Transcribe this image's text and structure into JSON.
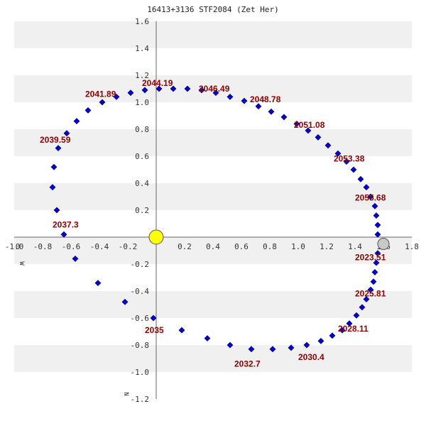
{
  "chart_data": {
    "type": "scatter",
    "title": "16413+3136 STF2084 (Zet Her)",
    "xlim": [
      -1.0,
      1.8
    ],
    "ylim": [
      -1.2,
      1.6
    ],
    "y_inverted": true,
    "x_ticks": [
      "-1.0",
      "-0.8",
      "-0.6",
      "-0.4",
      "-0.2",
      "0.2",
      "0.4",
      "0.6",
      "0.8",
      "1.0",
      "1.2",
      "1.4",
      "1.6",
      "1.8"
    ],
    "x_tick_values": [
      -1.0,
      -0.8,
      -0.6,
      -0.4,
      -0.2,
      0.2,
      0.4,
      0.6,
      0.8,
      1.0,
      1.2,
      1.4,
      1.6,
      1.8
    ],
    "y_ticks": [
      "1.6",
      "1.4",
      "1.2",
      "1.0",
      "0.8",
      "0.6",
      "0.4",
      "0.2",
      "-0.2",
      "-0.4",
      "-0.6",
      "-0.8",
      "-1.0",
      "-1.2"
    ],
    "y_tick_values": [
      1.6,
      1.4,
      1.2,
      1.0,
      0.8,
      0.6,
      0.4,
      0.2,
      -0.2,
      -0.4,
      -0.6,
      -0.8,
      -1.0,
      -1.2
    ],
    "x_zero_label": "0",
    "west_label": "W",
    "north_label": "N",
    "grid": "alternating horizontal bands",
    "colors": {
      "band": "#f0f0f0",
      "point": "#0000cc",
      "epoch_text": "#8b0000",
      "primary_star": "#ffff00",
      "current_position": "#c8c8c8",
      "axis": "#666666"
    },
    "primary": {
      "x": 0.0,
      "y": 0.0
    },
    "current_position": {
      "x": 1.6,
      "y": -0.05
    },
    "orbit_points": [
      {
        "x": 1.56,
        "y": 0.02
      },
      {
        "x": 1.56,
        "y": -0.12
      },
      {
        "x": 1.55,
        "y": -0.19
      },
      {
        "x": 1.54,
        "y": -0.26
      },
      {
        "x": 1.53,
        "y": -0.33
      },
      {
        "x": 1.51,
        "y": -0.39
      },
      {
        "x": 1.48,
        "y": -0.46
      },
      {
        "x": 1.45,
        "y": -0.52
      },
      {
        "x": 1.41,
        "y": -0.58
      },
      {
        "x": 1.36,
        "y": -0.64
      },
      {
        "x": 1.31,
        "y": -0.69
      },
      {
        "x": 1.24,
        "y": -0.73
      },
      {
        "x": 1.16,
        "y": -0.77
      },
      {
        "x": 1.06,
        "y": -0.8
      },
      {
        "x": 0.95,
        "y": -0.82
      },
      {
        "x": 0.82,
        "y": -0.83
      },
      {
        "x": 0.67,
        "y": -0.83
      },
      {
        "x": 0.52,
        "y": -0.8
      },
      {
        "x": 0.36,
        "y": -0.75
      },
      {
        "x": 0.18,
        "y": -0.69
      },
      {
        "x": -0.02,
        "y": -0.6
      },
      {
        "x": -0.22,
        "y": -0.48
      },
      {
        "x": -0.41,
        "y": -0.34
      },
      {
        "x": -0.57,
        "y": -0.16
      },
      {
        "x": -0.65,
        "y": 0.02
      },
      {
        "x": -0.7,
        "y": 0.2
      },
      {
        "x": -0.73,
        "y": 0.37
      },
      {
        "x": -0.72,
        "y": 0.52
      },
      {
        "x": -0.69,
        "y": 0.66
      },
      {
        "x": -0.63,
        "y": 0.77
      },
      {
        "x": -0.56,
        "y": 0.86
      },
      {
        "x": -0.48,
        "y": 0.94
      },
      {
        "x": -0.38,
        "y": 1.0
      },
      {
        "x": -0.28,
        "y": 1.04
      },
      {
        "x": -0.18,
        "y": 1.07
      },
      {
        "x": -0.08,
        "y": 1.09
      },
      {
        "x": 0.02,
        "y": 1.1
      },
      {
        "x": 0.12,
        "y": 1.1
      },
      {
        "x": 0.22,
        "y": 1.1
      },
      {
        "x": 0.32,
        "y": 1.09
      },
      {
        "x": 0.42,
        "y": 1.07
      },
      {
        "x": 0.52,
        "y": 1.04
      },
      {
        "x": 0.62,
        "y": 1.01
      },
      {
        "x": 0.72,
        "y": 0.97
      },
      {
        "x": 0.81,
        "y": 0.93
      },
      {
        "x": 0.9,
        "y": 0.89
      },
      {
        "x": 0.99,
        "y": 0.84
      },
      {
        "x": 1.07,
        "y": 0.79
      },
      {
        "x": 1.14,
        "y": 0.74
      },
      {
        "x": 1.21,
        "y": 0.68
      },
      {
        "x": 1.28,
        "y": 0.62
      },
      {
        "x": 1.34,
        "y": 0.56
      },
      {
        "x": 1.39,
        "y": 0.5
      },
      {
        "x": 1.44,
        "y": 0.43
      },
      {
        "x": 1.48,
        "y": 0.37
      },
      {
        "x": 1.51,
        "y": 0.3
      },
      {
        "x": 1.54,
        "y": 0.23
      },
      {
        "x": 1.55,
        "y": 0.16
      },
      {
        "x": 1.56,
        "y": 0.09
      }
    ],
    "epoch_labels": [
      {
        "text": "2023.51",
        "x": 1.4,
        "y": -0.17
      },
      {
        "text": "2025.81",
        "x": 1.4,
        "y": -0.44
      },
      {
        "text": "2028.11",
        "x": 1.28,
        "y": -0.7
      },
      {
        "text": "2030.4",
        "x": 1.0,
        "y": -0.91
      },
      {
        "text": "2032.7",
        "x": 0.55,
        "y": -0.96
      },
      {
        "text": "2035",
        "x": -0.08,
        "y": -0.71
      },
      {
        "text": "2037.3",
        "x": -0.73,
        "y": 0.07
      },
      {
        "text": "2039.59",
        "x": -0.82,
        "y": 0.7
      },
      {
        "text": "2041.89",
        "x": -0.5,
        "y": 1.04
      },
      {
        "text": "2044.19",
        "x": -0.1,
        "y": 1.12
      },
      {
        "text": "2046.49",
        "x": 0.3,
        "y": 1.08
      },
      {
        "text": "2048.78",
        "x": 0.66,
        "y": 1.0
      },
      {
        "text": "2051.08",
        "x": 0.97,
        "y": 0.81
      },
      {
        "text": "2053.38",
        "x": 1.25,
        "y": 0.56
      },
      {
        "text": "2055.68",
        "x": 1.4,
        "y": 0.27
      }
    ]
  }
}
